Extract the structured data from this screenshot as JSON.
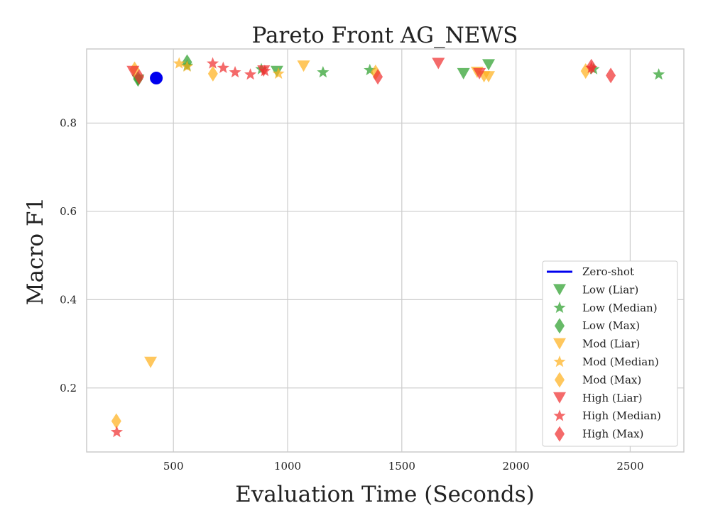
{
  "chart_data": {
    "type": "scatter",
    "title": "Pareto Front AG_NEWS",
    "xlabel": "Evaluation Time (Seconds)",
    "ylabel": "Macro F1",
    "xlim": [
      120,
      2735
    ],
    "ylim": [
      0.055,
      0.968
    ],
    "xticks": [
      500,
      1000,
      1500,
      2000,
      2500
    ],
    "yticks": [
      0.2,
      0.4,
      0.6,
      0.8
    ],
    "grid": true,
    "legend_position": "lower-right",
    "series": [
      {
        "name": "Zero-shot",
        "color": "#0000ee",
        "marker": "line-circle",
        "points": [
          [
            425,
            0.902
          ]
        ]
      },
      {
        "name": "Low (Liar)",
        "color": "#2ca02c",
        "marker": "triangle-down",
        "points": [
          [
            345,
            0.897
          ],
          [
            953,
            0.917
          ],
          [
            1770,
            0.912
          ],
          [
            1880,
            0.932
          ]
        ]
      },
      {
        "name": "Low (Median)",
        "color": "#2ca02c",
        "marker": "star",
        "points": [
          [
            560,
            0.93
          ],
          [
            885,
            0.922
          ],
          [
            1155,
            0.915
          ],
          [
            1360,
            0.92
          ],
          [
            2340,
            0.922
          ],
          [
            2625,
            0.91
          ]
        ]
      },
      {
        "name": "Low (Max)",
        "color": "#2ca02c",
        "marker": "diamond",
        "points": [
          [
            560,
            0.938
          ],
          [
            345,
            0.9
          ]
        ]
      },
      {
        "name": "Mod (Liar)",
        "color": "#ffb21f",
        "marker": "triangle-down",
        "points": [
          [
            400,
            0.258
          ],
          [
            1070,
            0.929
          ],
          [
            1830,
            0.915
          ],
          [
            1860,
            0.905
          ],
          [
            1880,
            0.905
          ]
        ]
      },
      {
        "name": "Mod (Median)",
        "color": "#ffb21f",
        "marker": "star",
        "points": [
          [
            525,
            0.935
          ],
          [
            960,
            0.912
          ],
          [
            560,
            0.928
          ]
        ]
      },
      {
        "name": "Mod (Max)",
        "color": "#ffb21f",
        "marker": "diamond",
        "points": [
          [
            250,
            0.125
          ],
          [
            330,
            0.922
          ],
          [
            673,
            0.912
          ],
          [
            2305,
            0.918
          ],
          [
            1385,
            0.915
          ]
        ]
      },
      {
        "name": "High (Liar)",
        "color": "#f03030",
        "marker": "triangle-down",
        "points": [
          [
            323,
            0.917
          ],
          [
            1660,
            0.935
          ],
          [
            1840,
            0.912
          ],
          [
            895,
            0.918
          ]
        ]
      },
      {
        "name": "High (Median)",
        "color": "#f03030",
        "marker": "star",
        "points": [
          [
            252,
            0.1
          ],
          [
            672,
            0.935
          ],
          [
            718,
            0.925
          ],
          [
            770,
            0.915
          ],
          [
            837,
            0.91
          ],
          [
            900,
            0.918
          ],
          [
            2330,
            0.925
          ]
        ]
      },
      {
        "name": "High (Max)",
        "color": "#f03030",
        "marker": "diamond",
        "points": [
          [
            350,
            0.905
          ],
          [
            1395,
            0.905
          ],
          [
            2330,
            0.928
          ],
          [
            2415,
            0.908
          ]
        ]
      }
    ]
  }
}
